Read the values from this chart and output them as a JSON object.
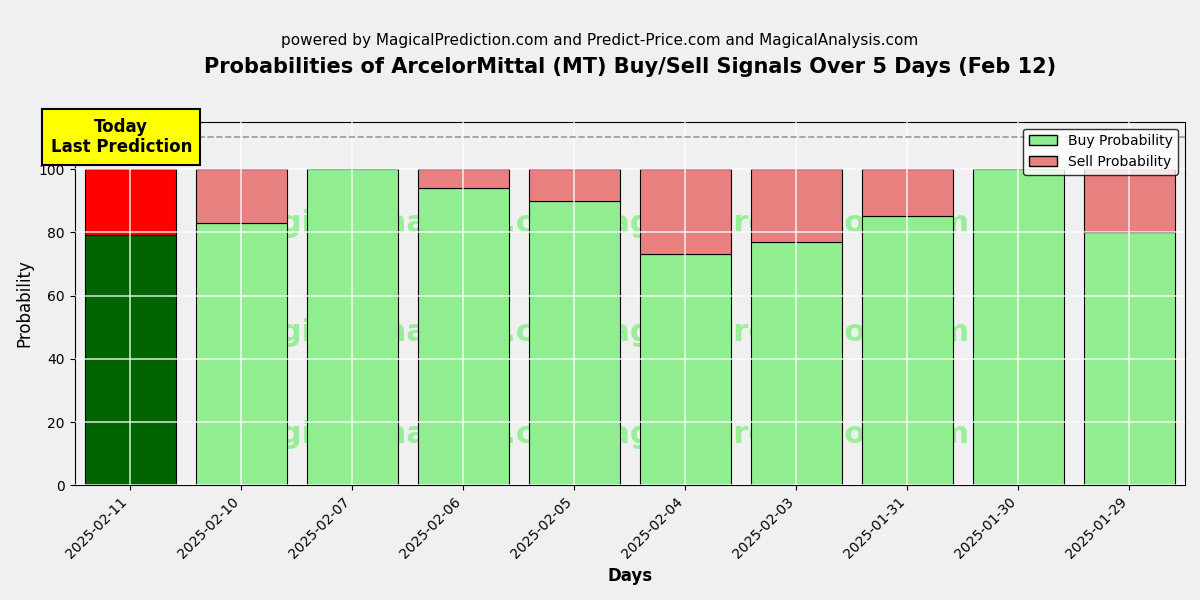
{
  "title": "Probabilities of ArcelorMittal (MT) Buy/Sell Signals Over 5 Days (Feb 12)",
  "subtitle": "powered by MagicalPrediction.com and Predict-Price.com and MagicalAnalysis.com",
  "xlabel": "Days",
  "ylabel": "Probability",
  "dates": [
    "2025-02-11",
    "2025-02-10",
    "2025-02-07",
    "2025-02-06",
    "2025-02-05",
    "2025-02-04",
    "2025-02-03",
    "2025-01-31",
    "2025-01-30",
    "2025-01-29"
  ],
  "buy_probs": [
    79,
    83,
    100,
    94,
    90,
    73,
    77,
    85,
    100,
    80
  ],
  "sell_probs": [
    21,
    17,
    0,
    6,
    10,
    27,
    23,
    15,
    0,
    20
  ],
  "today_index": 0,
  "today_buy_color": "#006400",
  "today_sell_color": "#FF0000",
  "buy_color": "#90EE90",
  "sell_color": "#E88080",
  "bar_edge_color": "black",
  "bar_linewidth": 0.8,
  "bar_width": 0.82,
  "ylim": [
    0,
    115
  ],
  "dashed_line_y": 110,
  "dashed_line_color": "#999999",
  "grid_color": "white",
  "grid_linewidth": 1.2,
  "watermark_color": "#90EE90",
  "watermark_alpha": 0.9,
  "watermark_fontsize": 22,
  "annotation_text": "Today\nLast Prediction",
  "annotation_bg_color": "yellow",
  "annotation_fontsize": 12,
  "background_color": "#f0f0f0",
  "plot_bg_color": "#f0f0f0",
  "title_fontsize": 15,
  "subtitle_fontsize": 11,
  "legend_fontsize": 10,
  "axis_label_fontsize": 12,
  "tick_fontsize": 10
}
